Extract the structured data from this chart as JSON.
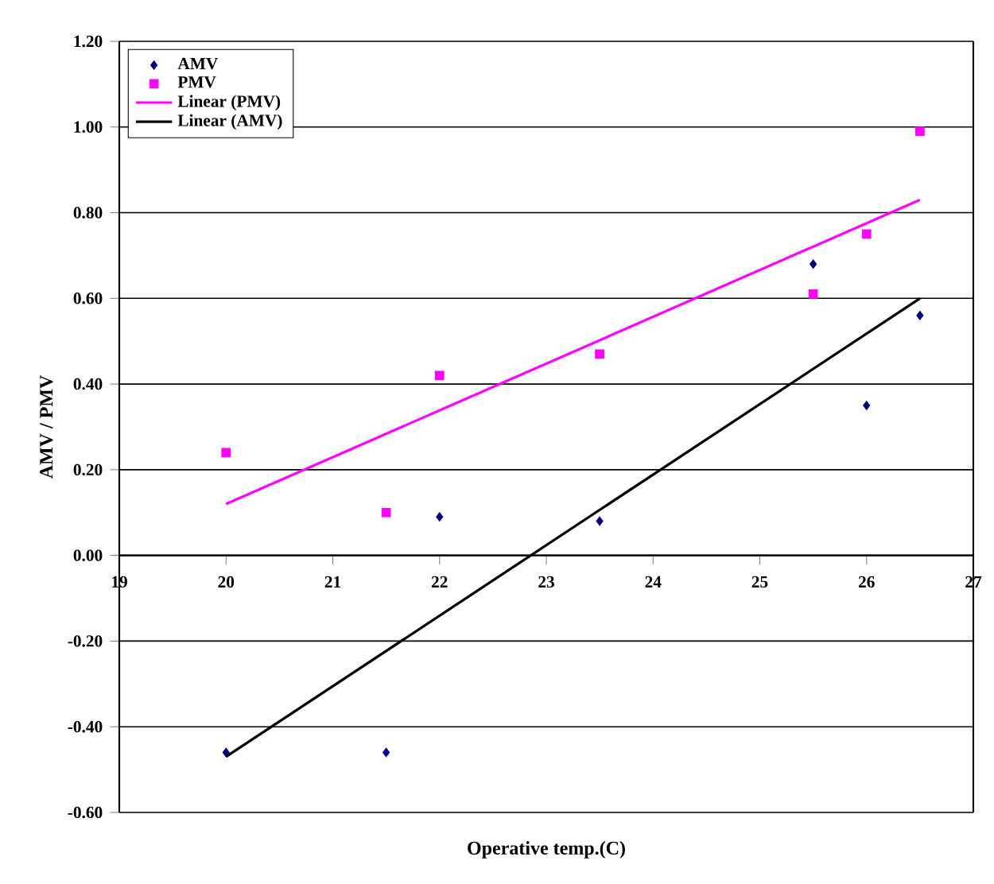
{
  "chart_data": {
    "type": "scatter",
    "xlabel": "Operative temp.(C)",
    "ylabel": "AMV / PMV",
    "xlim": [
      19,
      27
    ],
    "xticks": [
      19,
      20,
      21,
      22,
      23,
      24,
      25,
      26,
      27
    ],
    "ylim": [
      -0.6,
      1.2
    ],
    "yticks": [
      {
        "value": -0.6,
        "label": "-0.60"
      },
      {
        "value": -0.4,
        "label": "-0.40"
      },
      {
        "value": -0.2,
        "label": "-0.20"
      },
      {
        "value": 0,
        "label": "0.00"
      },
      {
        "value": 0.2,
        "label": "0.20"
      },
      {
        "value": 0.4,
        "label": "0.40"
      },
      {
        "value": 0.6,
        "label": "0.60"
      },
      {
        "value": 0.8,
        "label": "0.80"
      },
      {
        "value": 1.0,
        "label": "1.00"
      },
      {
        "value": 1.2,
        "label": "1.20"
      }
    ],
    "grid": "y",
    "legend": "top left",
    "series": [
      {
        "name": "AMV",
        "marker": "diamond",
        "color": "#000080",
        "x": [
          20,
          21.5,
          22,
          23.5,
          25.5,
          26,
          26.5
        ],
        "values": [
          -0.46,
          -0.46,
          0.09,
          0.08,
          0.68,
          0.35,
          0.56
        ]
      },
      {
        "name": "PMV",
        "marker": "square",
        "color": "#ff00ff",
        "x": [
          20,
          21.5,
          22,
          23.5,
          25.5,
          26,
          26.5
        ],
        "values": [
          0.24,
          0.1,
          0.42,
          0.47,
          0.61,
          0.75,
          0.99
        ]
      },
      {
        "name": "Linear (PMV)",
        "type": "line",
        "marker": "none",
        "color": "#ff00ff",
        "x": [
          20,
          26.5
        ],
        "values": [
          0.12,
          0.83
        ]
      },
      {
        "name": "Linear (AMV)",
        "type": "line",
        "marker": "none",
        "color": "#000000",
        "x": [
          20,
          26.5
        ],
        "values": [
          -0.47,
          0.6
        ]
      }
    ]
  }
}
